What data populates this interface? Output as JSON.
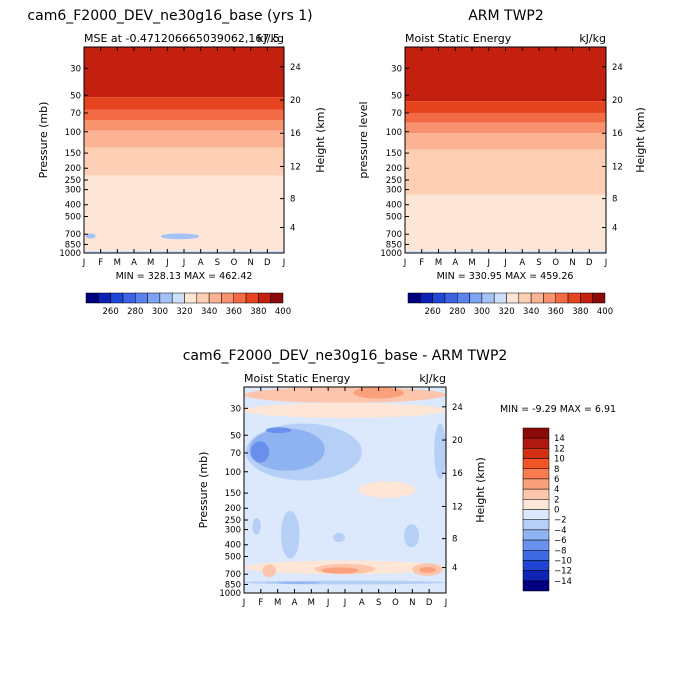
{
  "chart_data": [
    {
      "type": "heatmap",
      "title": "cam6_F2000_DEV_ne30g16_base (yrs 1)",
      "subtitle_left": "MSE at -0.471206665039062,167.5",
      "subtitle_right": "kJ/kg",
      "ylabel": "Pressure (mb)",
      "y2label": "Height (km)",
      "x_ticks": [
        "J",
        "F",
        "M",
        "A",
        "M",
        "J",
        "J",
        "A",
        "S",
        "O",
        "N",
        "D",
        "J"
      ],
      "p_ticks": [
        30,
        50,
        70,
        100,
        150,
        200,
        250,
        300,
        400,
        500,
        700,
        850,
        1000
      ],
      "h_ticks": [
        4,
        8,
        12,
        16,
        20,
        24
      ],
      "ylim": [
        1000,
        20
      ],
      "stats": "MIN = 328.13  MAX = 462.42",
      "field": {
        "band_values": [
          400,
          390,
          380,
          370,
          360,
          350,
          340,
          330
        ],
        "band_top_mb": [
          20,
          52,
          66,
          80,
          98,
          135,
          230,
          960
        ],
        "band_bottom_mb": [
          52,
          66,
          80,
          98,
          135,
          230,
          960,
          1000
        ],
        "regions": [
          {
            "value": 320,
            "month_start": 0.1,
            "month_end": 0.7,
            "p_top": 690,
            "p_bottom": 760
          },
          {
            "value": 320,
            "month_start": 4.6,
            "month_end": 6.9,
            "p_top": 690,
            "p_bottom": 770
          }
        ]
      }
    },
    {
      "type": "heatmap",
      "title": "ARM TWP2",
      "subtitle_left": "Moist Static Energy",
      "subtitle_right": "kJ/kg",
      "ylabel": "pressure level",
      "y2label": "Height (km)",
      "x_ticks": [
        "J",
        "F",
        "M",
        "A",
        "M",
        "J",
        "J",
        "A",
        "S",
        "O",
        "N",
        "D",
        "J"
      ],
      "p_ticks": [
        30,
        50,
        70,
        100,
        150,
        200,
        250,
        300,
        400,
        500,
        700,
        850,
        1000
      ],
      "h_ticks": [
        4,
        8,
        12,
        16,
        20,
        24
      ],
      "ylim": [
        1000,
        20
      ],
      "stats": "MIN = 330.95  MAX = 459.26",
      "field": {
        "band_values": [
          400,
          390,
          380,
          370,
          360,
          350,
          340,
          330
        ],
        "band_top_mb": [
          20,
          56,
          70,
          84,
          103,
          140,
          330,
          960
        ],
        "band_bottom_mb": [
          56,
          70,
          84,
          103,
          140,
          330,
          960,
          1000
        ],
        "regions": []
      }
    },
    {
      "type": "heatmap",
      "title": "cam6_F2000_DEV_ne30g16_base - ARM TWP2",
      "subtitle_left": "Moist Static Energy",
      "subtitle_right": "kJ/kg",
      "ylabel": "Pressure (mb)",
      "y2label": "Height (km)",
      "x_ticks": [
        "J",
        "F",
        "M",
        "A",
        "M",
        "J",
        "J",
        "A",
        "S",
        "O",
        "N",
        "D",
        "J"
      ],
      "p_ticks": [
        30,
        50,
        70,
        100,
        150,
        200,
        250,
        300,
        400,
        500,
        700,
        850,
        1000
      ],
      "h_ticks": [
        4,
        8,
        12,
        16,
        20,
        24
      ],
      "ylim": [
        1000,
        20
      ],
      "stats": "MIN = -9.29  MAX = 6.91",
      "field": {
        "background_value": -2,
        "regions": [
          {
            "value": 2,
            "month_start": 0.0,
            "month_end": 12.0,
            "p_top": 20,
            "p_bottom": 27
          },
          {
            "value": 4,
            "month_start": 6.5,
            "month_end": 9.5,
            "p_top": 20,
            "p_bottom": 25
          },
          {
            "value": 0,
            "month_start": 0.0,
            "month_end": 12.0,
            "p_top": 27,
            "p_bottom": 36
          },
          {
            "value": -4,
            "month_start": 0.1,
            "month_end": 7.0,
            "p_top": 40,
            "p_bottom": 118
          },
          {
            "value": -6,
            "month_start": 0.3,
            "month_end": 4.8,
            "p_top": 44,
            "p_bottom": 98
          },
          {
            "value": -8,
            "month_start": 0.4,
            "month_end": 1.5,
            "p_top": 56,
            "p_bottom": 84
          },
          {
            "value": -8,
            "month_start": 1.3,
            "month_end": 2.8,
            "p_top": 43,
            "p_bottom": 48
          },
          {
            "value": -4,
            "month_start": 11.3,
            "month_end": 12.0,
            "p_top": 40,
            "p_bottom": 115
          },
          {
            "value": 0,
            "month_start": 6.8,
            "month_end": 10.2,
            "p_top": 120,
            "p_bottom": 165
          },
          {
            "value": -4,
            "month_start": 0.5,
            "month_end": 1.0,
            "p_top": 240,
            "p_bottom": 330
          },
          {
            "value": -4,
            "month_start": 2.2,
            "month_end": 3.3,
            "p_top": 210,
            "p_bottom": 520
          },
          {
            "value": -4,
            "month_start": 5.3,
            "month_end": 6.0,
            "p_top": 320,
            "p_bottom": 380
          },
          {
            "value": -4,
            "month_start": 9.5,
            "month_end": 10.4,
            "p_top": 270,
            "p_bottom": 420
          },
          {
            "value": 0,
            "month_start": 0.0,
            "month_end": 12.0,
            "p_top": 540,
            "p_bottom": 700
          },
          {
            "value": 2,
            "month_start": 1.1,
            "month_end": 1.9,
            "p_top": 580,
            "p_bottom": 740
          },
          {
            "value": 2,
            "month_start": 4.2,
            "month_end": 7.8,
            "p_top": 575,
            "p_bottom": 700
          },
          {
            "value": 4,
            "month_start": 4.6,
            "month_end": 6.8,
            "p_top": 615,
            "p_bottom": 690
          },
          {
            "value": 2,
            "month_start": 10.0,
            "month_end": 11.8,
            "p_top": 570,
            "p_bottom": 720
          },
          {
            "value": 4,
            "month_start": 10.4,
            "month_end": 11.4,
            "p_top": 610,
            "p_bottom": 680
          },
          {
            "value": -4,
            "month_start": 0.0,
            "month_end": 12.0,
            "p_top": 790,
            "p_bottom": 850
          },
          {
            "value": -6,
            "month_start": 2.0,
            "month_end": 4.5,
            "p_top": 810,
            "p_bottom": 840
          },
          {
            "value": -2,
            "month_start": 0.0,
            "month_end": 12.0,
            "p_top": 900,
            "p_bottom": 1000
          }
        ]
      }
    }
  ],
  "colorbars": {
    "top_left": {
      "labels": [
        "260",
        "280",
        "300",
        "320",
        "340",
        "360",
        "380",
        "400"
      ]
    },
    "top_right": {
      "labels": [
        "260",
        "280",
        "300",
        "320",
        "340",
        "360",
        "380",
        "400"
      ]
    },
    "diff": {
      "labels": [
        "14",
        "12",
        "10",
        "8",
        "6",
        "4",
        "2",
        "0",
        "−2",
        "−4",
        "−6",
        "−8",
        "−10",
        "−12",
        "−14"
      ]
    }
  },
  "palettes": {
    "abs_colors": [
      "#00007f",
      "#0c1fb6",
      "#1e46d6",
      "#3a63e5",
      "#5b83ee",
      "#7ea3f3",
      "#a4c2f7",
      "#cddff9",
      "#fde6d6",
      "#fdd0b6",
      "#fbb393",
      "#f8926f",
      "#f36b45",
      "#e6431f",
      "#c3200f",
      "#8c0909"
    ],
    "abs_values": [
      255,
      265,
      275,
      285,
      295,
      305,
      315,
      325,
      335,
      345,
      355,
      365,
      375,
      385,
      395,
      405
    ],
    "diff_colors": [
      "#8c0909",
      "#b01910",
      "#d13013",
      "#ef5525",
      "#f87b4f",
      "#fba07c",
      "#fdc6ac",
      "#fde6d6",
      "#dce8fb",
      "#b6cff6",
      "#8fb2f1",
      "#6890ec",
      "#3f68e3",
      "#1f44d2",
      "#0f24b2",
      "#00007f"
    ],
    "diff_values": [
      15,
      13,
      11,
      9,
      7,
      5,
      3,
      1,
      -1,
      -3,
      -5,
      -7,
      -9,
      -11,
      -13,
      -15
    ]
  }
}
